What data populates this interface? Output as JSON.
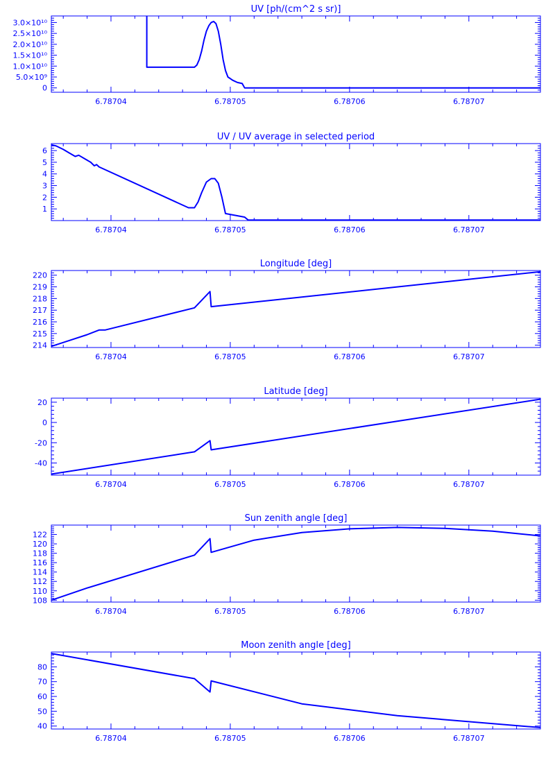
{
  "style": {
    "color": "#0000ff",
    "background": "#ffffff"
  },
  "chart_data": [
    {
      "type": "line",
      "title": "UV [ph/(cm^2 s sr)]",
      "xlim": [
        6.787035,
        6.787076
      ],
      "x_ticks": [
        "6.78704",
        "6.78705",
        "6.78706",
        "6.78707"
      ],
      "x_tick_values": [
        6.78704,
        6.78705,
        6.78706,
        6.78707
      ],
      "ylim": [
        -2000000000.0,
        33000000000.0
      ],
      "y_ticks": [
        {
          "value": 0,
          "label": "0"
        },
        {
          "value": 5000000000.0,
          "label": "5.0×10⁹"
        },
        {
          "value": 10000000000.0,
          "label": "1.0×10¹⁰"
        },
        {
          "value": 15000000000.0,
          "label": "1.5×10¹⁰"
        },
        {
          "value": 20000000000.0,
          "label": "2.0×10¹⁰"
        },
        {
          "value": 25000000000.0,
          "label": "2.5×10¹⁰"
        },
        {
          "value": 30000000000.0,
          "label": "3.0×10¹⁰"
        }
      ],
      "points": [
        [
          6.787043,
          33000000000.0
        ],
        [
          6.787043,
          9500000000.0
        ],
        [
          6.787047,
          9500000000.0
        ],
        [
          6.7870472,
          10500000000.0
        ],
        [
          6.7870474,
          13000000000.0
        ],
        [
          6.7870476,
          17000000000.0
        ],
        [
          6.7870478,
          22000000000.0
        ],
        [
          6.787048,
          26000000000.0
        ],
        [
          6.7870482,
          28500000000.0
        ],
        [
          6.7870484,
          30000000000.0
        ],
        [
          6.7870486,
          30500000000.0
        ],
        [
          6.7870488,
          29500000000.0
        ],
        [
          6.787049,
          26000000000.0
        ],
        [
          6.7870492,
          20000000000.0
        ],
        [
          6.7870494,
          13000000000.0
        ],
        [
          6.7870496,
          8000000000.0
        ],
        [
          6.7870498,
          5000000000.0
        ],
        [
          6.7870502,
          3500000000.0
        ],
        [
          6.7870506,
          2500000000.0
        ],
        [
          6.787051,
          2000000000.0
        ],
        [
          6.7870512,
          0
        ],
        [
          6.787076,
          0
        ]
      ]
    },
    {
      "type": "line",
      "title": "UV / UV average in selected period",
      "xlim": [
        6.787035,
        6.787076
      ],
      "x_ticks": [
        "6.78704",
        "6.78705",
        "6.78706",
        "6.78707"
      ],
      "x_tick_values": [
        6.78704,
        6.78705,
        6.78706,
        6.78707
      ],
      "ylim": [
        0,
        6.6
      ],
      "y_ticks": [
        {
          "value": 1,
          "label": "1"
        },
        {
          "value": 2,
          "label": "2"
        },
        {
          "value": 3,
          "label": "3"
        },
        {
          "value": 4,
          "label": "4"
        },
        {
          "value": 5,
          "label": "5"
        },
        {
          "value": 6,
          "label": "6"
        }
      ],
      "points": [
        [
          6.787035,
          6.5
        ],
        [
          6.7870354,
          6.4
        ],
        [
          6.787036,
          6.1
        ],
        [
          6.7870365,
          5.8
        ],
        [
          6.787037,
          5.5
        ],
        [
          6.7870373,
          5.6
        ],
        [
          6.7870378,
          5.3
        ],
        [
          6.7870383,
          5.0
        ],
        [
          6.7870386,
          4.7
        ],
        [
          6.7870388,
          4.8
        ],
        [
          6.787039,
          4.6
        ],
        [
          6.7870465,
          1.1
        ],
        [
          6.787047,
          1.1
        ],
        [
          6.7870473,
          1.6
        ],
        [
          6.7870476,
          2.4
        ],
        [
          6.787048,
          3.3
        ],
        [
          6.7870484,
          3.6
        ],
        [
          6.7870487,
          3.6
        ],
        [
          6.787049,
          3.2
        ],
        [
          6.7870493,
          2.0
        ],
        [
          6.7870496,
          0.6
        ],
        [
          6.7870512,
          0.3
        ],
        [
          6.7870515,
          0.05
        ],
        [
          6.787076,
          0.05
        ]
      ]
    },
    {
      "type": "line",
      "title": "Longitude [deg]",
      "xlim": [
        6.787035,
        6.787076
      ],
      "x_ticks": [
        "6.78704",
        "6.78705",
        "6.78706",
        "6.78707"
      ],
      "x_tick_values": [
        6.78704,
        6.78705,
        6.78706,
        6.78707
      ],
      "ylim": [
        213.8,
        220.4
      ],
      "y_ticks": [
        {
          "value": 214,
          "label": "214"
        },
        {
          "value": 215,
          "label": "215"
        },
        {
          "value": 216,
          "label": "216"
        },
        {
          "value": 217,
          "label": "217"
        },
        {
          "value": 218,
          "label": "218"
        },
        {
          "value": 219,
          "label": "219"
        },
        {
          "value": 220,
          "label": "220"
        }
      ],
      "points": [
        [
          6.787035,
          213.9
        ],
        [
          6.7870365,
          214.4
        ],
        [
          6.787038,
          214.9
        ],
        [
          6.787039,
          215.3
        ],
        [
          6.7870395,
          215.3
        ],
        [
          6.787047,
          217.2
        ],
        [
          6.7870483,
          218.6
        ],
        [
          6.7870484,
          217.3
        ],
        [
          6.787076,
          220.3
        ]
      ]
    },
    {
      "type": "line",
      "title": "Latitude [deg]",
      "xlim": [
        6.787035,
        6.787076
      ],
      "x_ticks": [
        "6.78704",
        "6.78705",
        "6.78706",
        "6.78707"
      ],
      "x_tick_values": [
        6.78704,
        6.78705,
        6.78706,
        6.78707
      ],
      "ylim": [
        -52,
        24
      ],
      "y_ticks": [
        {
          "value": -40,
          "label": "-40"
        },
        {
          "value": -20,
          "label": "-20"
        },
        {
          "value": 0,
          "label": "0"
        },
        {
          "value": 20,
          "label": "20"
        }
      ],
      "points": [
        [
          6.787035,
          -51
        ],
        [
          6.787047,
          -29
        ],
        [
          6.7870483,
          -18
        ],
        [
          6.7870484,
          -27
        ],
        [
          6.787076,
          23
        ]
      ]
    },
    {
      "type": "line",
      "title": "Sun zenith angle [deg]",
      "xlim": [
        6.787035,
        6.787076
      ],
      "x_ticks": [
        "6.78704",
        "6.78705",
        "6.78706",
        "6.78707"
      ],
      "x_tick_values": [
        6.78704,
        6.78705,
        6.78706,
        6.78707
      ],
      "ylim": [
        107.6,
        124
      ],
      "y_ticks": [
        {
          "value": 108,
          "label": "108"
        },
        {
          "value": 110,
          "label": "110"
        },
        {
          "value": 112,
          "label": "112"
        },
        {
          "value": 114,
          "label": "114"
        },
        {
          "value": 116,
          "label": "116"
        },
        {
          "value": 118,
          "label": "118"
        },
        {
          "value": 120,
          "label": "120"
        },
        {
          "value": 122,
          "label": "122"
        }
      ],
      "points": [
        [
          6.787035,
          108.0
        ],
        [
          6.787038,
          110.6
        ],
        [
          6.787047,
          117.6
        ],
        [
          6.7870483,
          121.1
        ],
        [
          6.7870484,
          118.2
        ],
        [
          6.787052,
          120.8
        ],
        [
          6.787056,
          122.4
        ],
        [
          6.78706,
          123.2
        ],
        [
          6.787064,
          123.5
        ],
        [
          6.787068,
          123.3
        ],
        [
          6.787072,
          122.7
        ],
        [
          6.787076,
          121.7
        ]
      ]
    },
    {
      "type": "line",
      "title": "Moon zenith angle [deg]",
      "xlim": [
        6.787035,
        6.787076
      ],
      "x_ticks": [
        "6.78704",
        "6.78705",
        "6.78706",
        "6.78707"
      ],
      "x_tick_values": [
        6.78704,
        6.78705,
        6.78706,
        6.78707
      ],
      "ylim": [
        38,
        90
      ],
      "y_ticks": [
        {
          "value": 40,
          "label": "40"
        },
        {
          "value": 50,
          "label": "50"
        },
        {
          "value": 60,
          "label": "60"
        },
        {
          "value": 70,
          "label": "70"
        },
        {
          "value": 80,
          "label": "80"
        }
      ],
      "points": [
        [
          6.787035,
          89
        ],
        [
          6.787047,
          72
        ],
        [
          6.7870483,
          63
        ],
        [
          6.7870484,
          70.5
        ],
        [
          6.787056,
          55
        ],
        [
          6.787064,
          47
        ],
        [
          6.787076,
          39
        ]
      ]
    }
  ]
}
